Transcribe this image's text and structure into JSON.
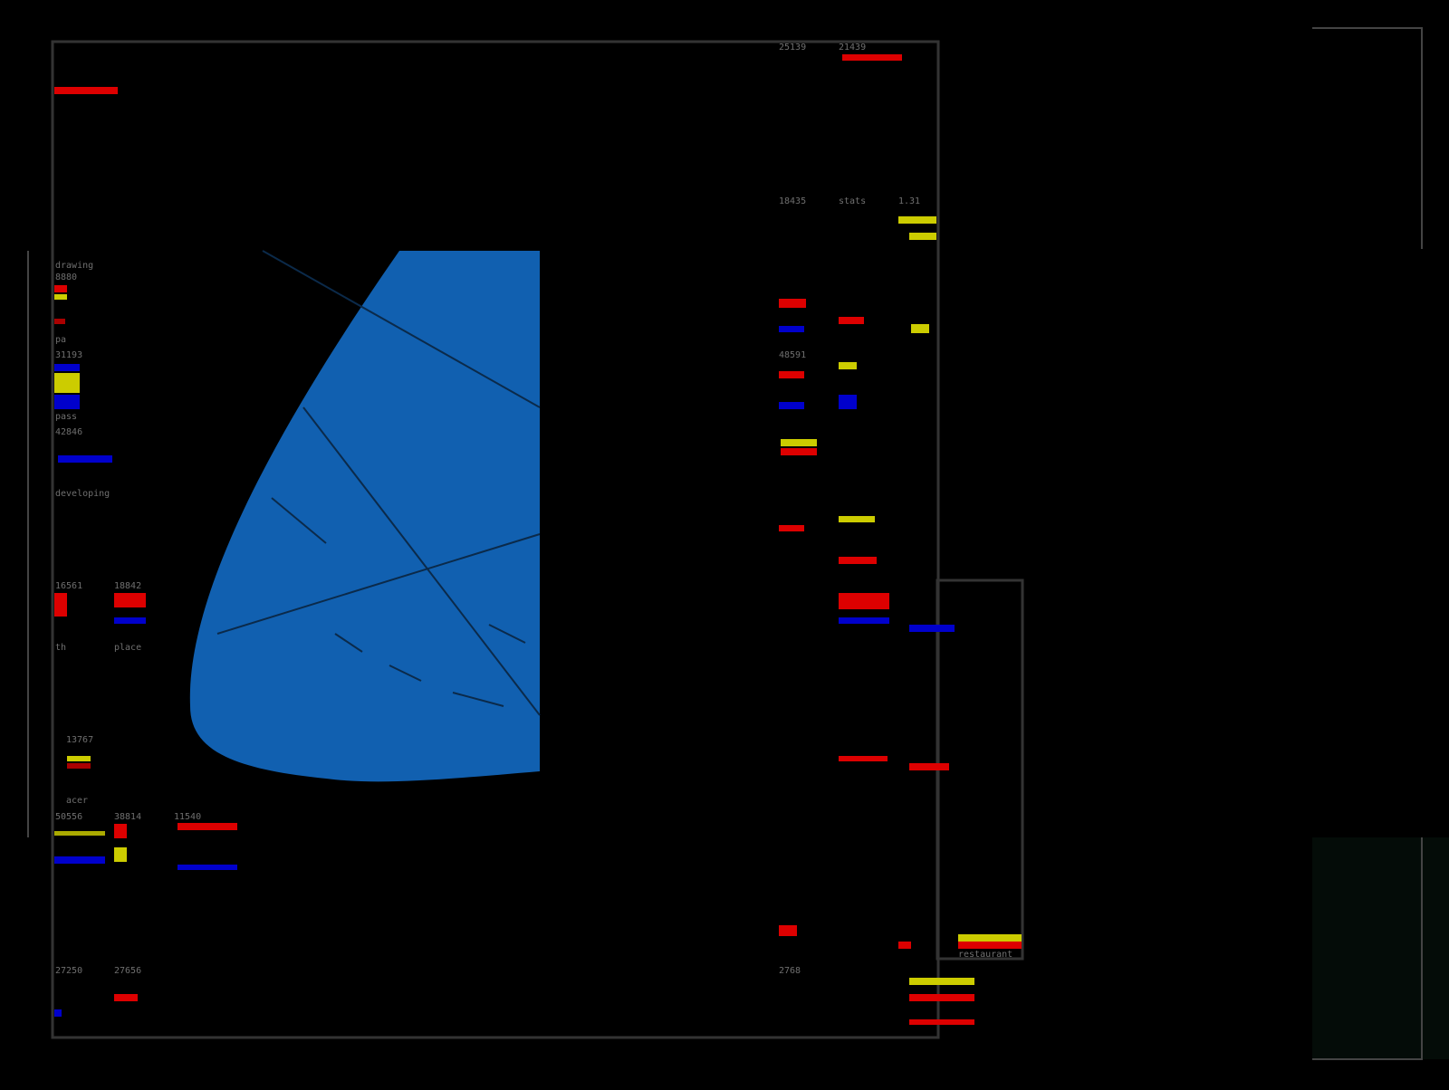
{
  "labels": [
    "drawing",
    "8880",
    "pa",
    "31193",
    "pass",
    "42846",
    "developing",
    "16561",
    "18842",
    "th",
    "place",
    "13767",
    "acer",
    "50556",
    "38814",
    "11540",
    "27250",
    "27656",
    "25139",
    "21439",
    "18435",
    "stats",
    "1.31",
    "48591",
    "2768",
    "restaurant"
  ]
}
